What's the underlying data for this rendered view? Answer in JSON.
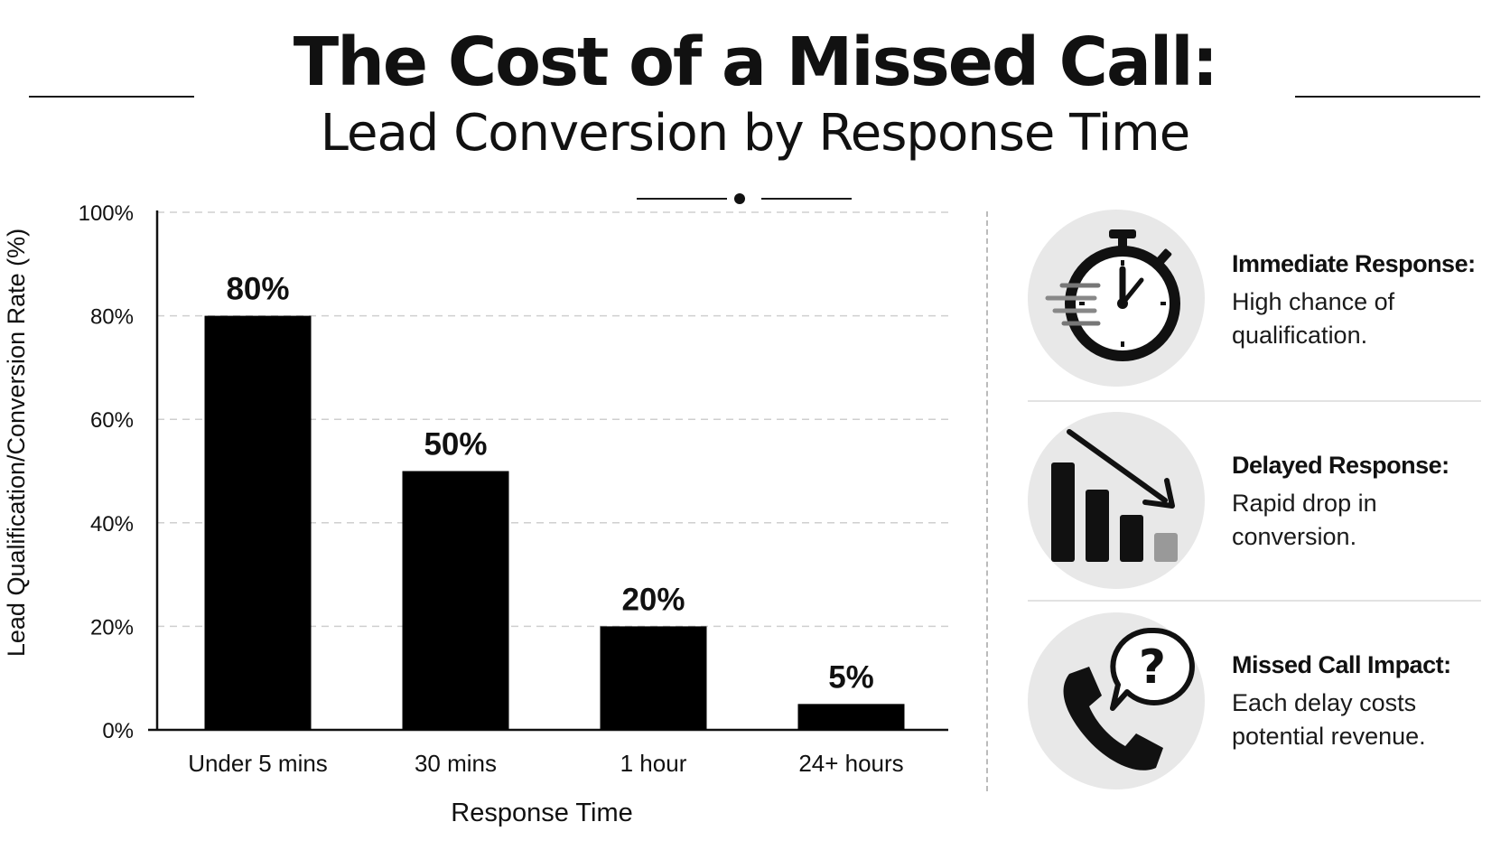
{
  "title": "The Cost of a Missed Call:",
  "subtitle": "Lead Conversion by Response Time",
  "chart_data": {
    "type": "bar",
    "categories": [
      "Under 5 mins",
      "30 mins",
      "1 hour",
      "24+ hours"
    ],
    "values": [
      80,
      50,
      20,
      5
    ],
    "value_labels": [
      "80%",
      "50%",
      "20%",
      "5%"
    ],
    "ylim": [
      0,
      100
    ],
    "yticks": [
      0,
      20,
      40,
      60,
      80,
      100
    ],
    "ytick_labels": [
      "0%",
      "20%",
      "40%",
      "60%",
      "80%",
      "100%"
    ],
    "xlabel": "Response Time",
    "ylabel": "Lead Qualification/Conversion Rate (%)",
    "grid": true,
    "bar_color": "#000000"
  },
  "panels": [
    {
      "icon": "stopwatch-icon",
      "title": "Immediate Response:",
      "body": "High chance of qualification."
    },
    {
      "icon": "declining-bars-icon",
      "title": "Delayed Response:",
      "body": "Rapid drop in conversion."
    },
    {
      "icon": "phone-question-icon",
      "title": "Missed Call Impact:",
      "body": "Each delay costs potential revenue."
    }
  ]
}
